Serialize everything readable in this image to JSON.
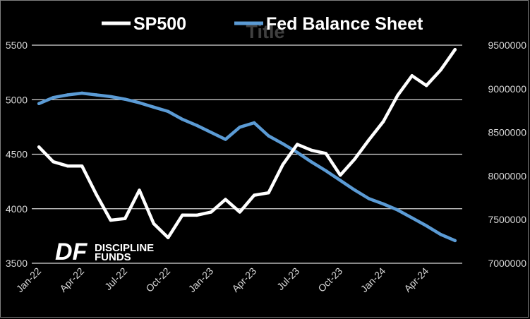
{
  "chart_data": {
    "type": "line",
    "title": "Title",
    "x": [
      "Jan-22",
      "Feb-22",
      "Mar-22",
      "Apr-22",
      "May-22",
      "Jun-22",
      "Jul-22",
      "Aug-22",
      "Sep-22",
      "Oct-22",
      "Nov-22",
      "Dec-22",
      "Jan-23",
      "Feb-23",
      "Mar-23",
      "Apr-23",
      "May-23",
      "Jun-23",
      "Jul-23",
      "Aug-23",
      "Sep-23",
      "Oct-23",
      "Nov-23",
      "Dec-23",
      "Jan-24",
      "Feb-24",
      "Mar-24",
      "Apr-24",
      "May-24",
      "Jun-24"
    ],
    "x_tick_labels": [
      "Jan-22",
      "Apr-22",
      "Jul-22",
      "Oct-22",
      "Jan-23",
      "Apr-23",
      "Jul-23",
      "Oct-23",
      "Jan-24",
      "Apr-24"
    ],
    "series": [
      {
        "name": "SP500",
        "axis": "left",
        "color": "#ffffff",
        "values": [
          4566,
          4431,
          4392,
          4391,
          4131,
          3895,
          3910,
          4170,
          3863,
          3735,
          3942,
          3941,
          3970,
          4085,
          3969,
          4124,
          4146,
          4405,
          4590,
          4536,
          4507,
          4308,
          4455,
          4632,
          4800,
          5040,
          5220,
          5130,
          5273,
          5460
        ]
      },
      {
        "name": "Fed Balance Sheet",
        "axis": "right",
        "color": "#5b9bd5",
        "values": [
          8830000,
          8900000,
          8930000,
          8950000,
          8930000,
          8910000,
          8880000,
          8840000,
          8790000,
          8740000,
          8650000,
          8580000,
          8500000,
          8420000,
          8560000,
          8610000,
          8460000,
          8370000,
          8270000,
          8160000,
          8060000,
          7950000,
          7840000,
          7740000,
          7680000,
          7610000,
          7520000,
          7430000,
          7330000,
          7260000
        ]
      }
    ],
    "y_left": {
      "ylim": [
        3500,
        5500
      ],
      "ticks": [
        "3500",
        "4000",
        "4500",
        "5000",
        "5500"
      ]
    },
    "y_right": {
      "ylim": [
        7000000,
        9500000
      ],
      "ticks": [
        "7000000",
        "7500000",
        "8000000",
        "8500000",
        "9000000",
        "9500000"
      ]
    },
    "grid": true,
    "legend_position": "top"
  },
  "logo": {
    "mark": "DF",
    "line1": "DISCIPLINE",
    "line2": "FUNDS"
  },
  "colors": {
    "background": "#000000",
    "gridline": "#d9d9d9",
    "sp500": "#ffffff",
    "fed": "#5b9bd5",
    "frame": "#7f7f7f"
  }
}
